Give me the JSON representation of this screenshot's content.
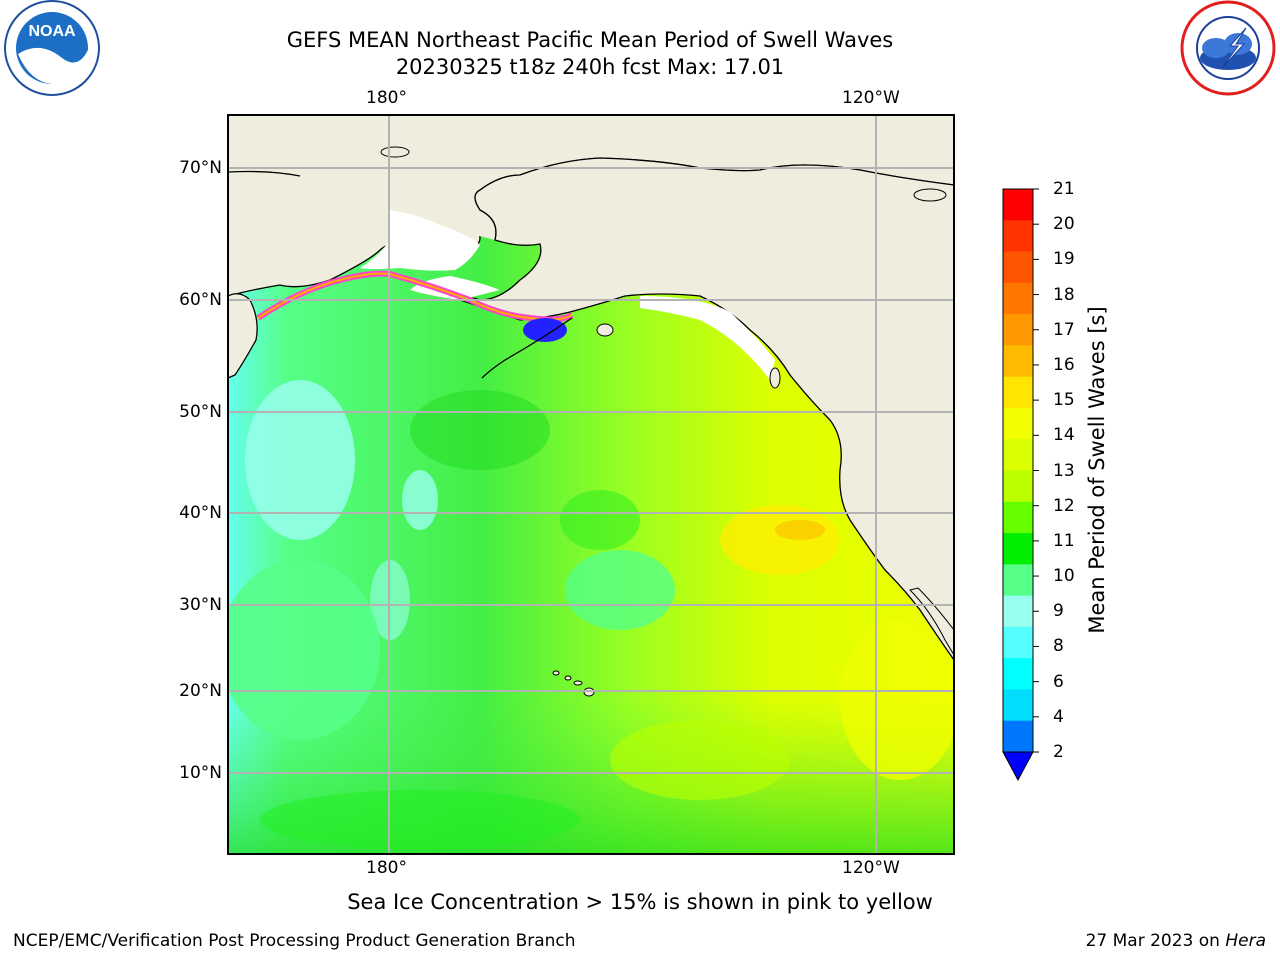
{
  "title": {
    "line1": "GEFS MEAN Northeast Pacific Mean Period of Swell Waves",
    "line2": "20230325 t18z 240h fcst   Max: 17.01"
  },
  "map": {
    "top_ticks": [
      "180°",
      "120°W"
    ],
    "bottom_ticks": [
      "180°",
      "120°W"
    ],
    "lat_ticks": [
      "70°N",
      "60°N",
      "50°N",
      "40°N",
      "30°N",
      "20°N",
      "10°N"
    ],
    "colors": {
      "land": "#efedde",
      "grid": "#b3b3b3",
      "ocean_low": "#55ff88",
      "ocean_high": "#eeff00"
    }
  },
  "colorbar": {
    "label": "Mean Period of Swell Waves [s]",
    "ticks": [
      "21",
      "20",
      "19",
      "18",
      "17",
      "16",
      "15",
      "14",
      "13",
      "12",
      "11",
      "10",
      "9",
      "8",
      "6",
      "4",
      "2"
    ],
    "colors": [
      "#ff0000",
      "#ff3300",
      "#ff5500",
      "#ff7700",
      "#ff9900",
      "#ffbb00",
      "#ffe500",
      "#f2ff00",
      "#d9ff00",
      "#bbff00",
      "#66ff00",
      "#00ee00",
      "#55ff88",
      "#99ffee",
      "#55ffff",
      "#00ffff",
      "#00ddff",
      "#0077ff",
      "#0000ff"
    ]
  },
  "note": "Sea Ice Concentration > 15% is shown in pink to yellow",
  "footer": {
    "left": "NCEP/EMC/Verification Post Processing Product Generation Branch",
    "right_date": "27 Mar 2023 on",
    "right_host": "Hera"
  },
  "logos": {
    "noaa": "NOAA",
    "nws": "NATIONAL WEATHER SERVICE"
  }
}
